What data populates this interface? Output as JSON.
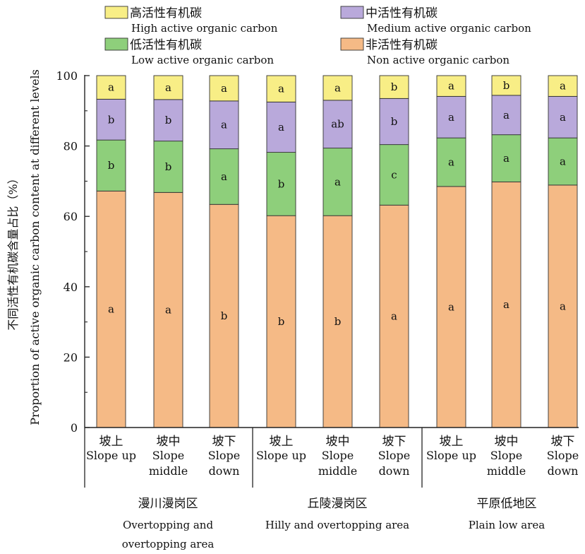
{
  "chart_data": {
    "type": "stacked_bar",
    "ylabel_cn": "不同活性有机碳含量占比（%）",
    "ylabel_en": "Proportion of active organic carbon content at different levels",
    "ylim": [
      0,
      100
    ],
    "yticks": [
      0,
      20,
      40,
      60,
      80,
      100
    ],
    "legend": {
      "placement": "top",
      "columns": 2
    },
    "series": [
      {
        "name_cn": "非活性有机碳",
        "name_en": "Non active organic carbon",
        "color": "#F5BA86",
        "values": [
          67.2,
          66.8,
          63.4,
          60.2,
          60.2,
          63.2,
          68.5,
          69.8,
          68.9
        ],
        "letters": [
          "a",
          "a",
          "b",
          "b",
          "b",
          "a",
          "a",
          "a",
          "a"
        ]
      },
      {
        "name_cn": "低活性有机碳",
        "name_en": "Low active organic carbon",
        "color": "#8ECF7B",
        "values": [
          14.5,
          14.6,
          15.8,
          18.0,
          19.2,
          17.2,
          13.8,
          13.4,
          13.4
        ],
        "letters": [
          "b",
          "b",
          "a",
          "b",
          "a",
          "c",
          "a",
          "a",
          "a"
        ]
      },
      {
        "name_cn": "中活性有机碳",
        "name_en": "Medium active organic carbon",
        "color": "#B9A9DB",
        "values": [
          11.6,
          11.8,
          13.6,
          14.3,
          13.6,
          13.1,
          11.8,
          11.2,
          11.8
        ],
        "letters": [
          "b",
          "b",
          "a",
          "a",
          "ab",
          "b",
          "a",
          "a",
          "a"
        ]
      },
      {
        "name_cn": "高活性有机碳",
        "name_en": "High active organic carbon",
        "color": "#F8EE86",
        "values": [
          6.7,
          6.8,
          7.2,
          7.5,
          7.0,
          6.5,
          5.9,
          5.6,
          5.9
        ],
        "letters": [
          "a",
          "a",
          "a",
          "a",
          "a",
          "b",
          "a",
          "b",
          "a"
        ]
      }
    ],
    "positions": [
      {
        "cn": "坡上",
        "en": [
          "Slope up"
        ]
      },
      {
        "cn": "坡中",
        "en": [
          "Slope",
          "middle"
        ]
      },
      {
        "cn": "坡下",
        "en": [
          "Slope",
          "down"
        ]
      },
      {
        "cn": "坡上",
        "en": [
          "Slope up"
        ]
      },
      {
        "cn": "坡中",
        "en": [
          "Slope",
          "middle"
        ]
      },
      {
        "cn": "坡下",
        "en": [
          "Slope",
          "down"
        ]
      },
      {
        "cn": "坡上",
        "en": [
          "Slope up"
        ]
      },
      {
        "cn": "坡中",
        "en": [
          "Slope",
          "middle"
        ]
      },
      {
        "cn": "坡下",
        "en": [
          "Slope",
          "down"
        ]
      }
    ],
    "groups": [
      {
        "cn": "漫川漫岗区",
        "en": [
          "Overtopping and",
          "overtopping area"
        ]
      },
      {
        "cn": "丘陵漫岗区",
        "en": [
          "Hilly and overtopping area"
        ]
      },
      {
        "cn": "平原低地区",
        "en": [
          "Plain low area"
        ]
      }
    ]
  }
}
